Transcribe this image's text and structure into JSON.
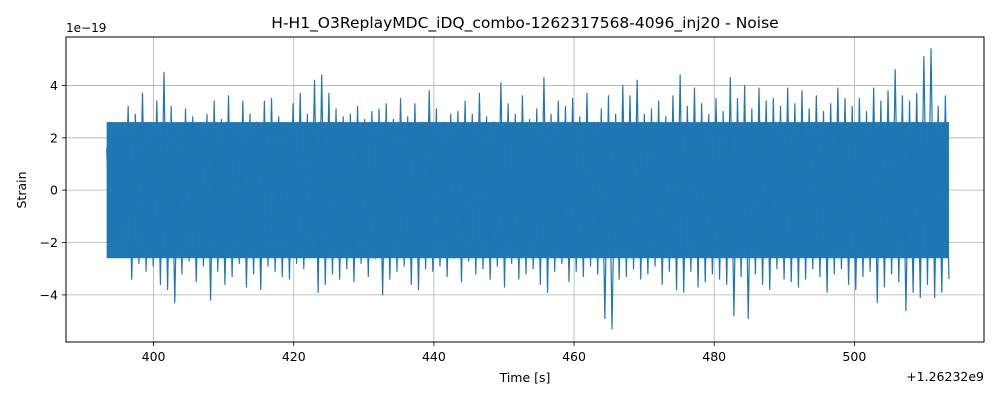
{
  "chart_data": {
    "type": "line",
    "title": "H-H1_O3ReplayMDC_iDQ_combo-1262317568-4096_inj20 - Noise",
    "xlabel": "Time [s]",
    "ylabel": "Strain",
    "x_offset_label": "+1.26232e9",
    "y_scale_label": "1e−19",
    "xlim": [
      387.5,
      518.5
    ],
    "ylim": [
      -5.8,
      5.85
    ],
    "x_ticks": [
      400,
      420,
      440,
      460,
      480,
      500
    ],
    "x_tick_labels": [
      "400",
      "420",
      "440",
      "460",
      "480",
      "500"
    ],
    "y_ticks": [
      -4,
      -2,
      0,
      2,
      4
    ],
    "y_tick_labels": [
      "−4",
      "−2",
      "0",
      "2",
      "4"
    ],
    "grid": true,
    "series": [
      {
        "color": "#1f77b4",
        "x_range": [
          393.3,
          513.5
        ],
        "sample_interval": 0.1,
        "typical_amplitude": 2.6,
        "y": [
          1.6,
          -1.8,
          2.3,
          -2.4,
          1.9,
          -2.1,
          3.2,
          -3.4,
          2.9,
          -2.8,
          3.7,
          -3.1,
          2.6,
          -2.9,
          3.4,
          -3.6,
          4.5,
          -3.8,
          3.2,
          -4.3,
          2.4,
          -3.2,
          3.1,
          -2.7,
          2.8,
          -3.5,
          2.5,
          -2.9,
          2.9,
          -4.2,
          3.4,
          -3.1,
          2.7,
          -3.6,
          3.6,
          -3.3,
          2.5,
          -2.8,
          3.4,
          -3.7,
          2.9,
          -3.2,
          2.6,
          -3.8,
          3.4,
          -2.9,
          3.5,
          -3.1,
          2.8,
          -3.3,
          2.4,
          -3.4,
          3.3,
          -2.8,
          3.7,
          -3.0,
          2.9,
          -2.5,
          4.2,
          -3.9,
          4.4,
          -3.6,
          3.7,
          -3.2,
          3.1,
          -3.4,
          2.8,
          -3.0,
          2.9,
          -3.5,
          3.2,
          -2.8,
          2.7,
          -3.3,
          3.0,
          -2.6,
          3.1,
          -4.0,
          3.3,
          -3.4,
          2.7,
          -3.1,
          3.5,
          -2.9,
          2.8,
          -3.6,
          3.3,
          -3.8,
          2.6,
          -3.0,
          3.8,
          -3.1,
          3.1,
          -2.9,
          2.6,
          -3.3,
          2.9,
          -2.6,
          3.0,
          -3.5,
          3.4,
          -2.7,
          2.9,
          -3.2,
          3.7,
          -3.0,
          2.8,
          -3.4,
          2.6,
          -2.9,
          4.1,
          -3.7,
          3.3,
          -2.8,
          2.9,
          -3.4,
          3.6,
          -3.2,
          2.7,
          -3.0,
          3.1,
          -3.6,
          4.3,
          -3.9,
          2.9,
          -3.1,
          3.4,
          -2.8,
          3.2,
          -3.5,
          3.5,
          -3.1,
          2.8,
          -3.3,
          3.7,
          -2.9,
          2.6,
          -3.2,
          3.1,
          -4.9,
          3.6,
          -5.3,
          2.9,
          -3.4,
          4.0,
          -3.3,
          3.6,
          -3.0,
          4.2,
          -3.4,
          2.9,
          -3.2,
          3.1,
          -2.9,
          3.4,
          -3.6,
          2.8,
          -3.1,
          3.6,
          -3.8,
          4.4,
          -3.9,
          3.2,
          -3.1,
          3.9,
          -3.7,
          3.3,
          -3.5,
          2.9,
          -3.2,
          3.5,
          -3.4,
          3.0,
          -3.6,
          4.3,
          -4.8,
          3.5,
          -3.3,
          4.0,
          -4.9,
          3.1,
          -3.2,
          3.9,
          -3.6,
          3.4,
          -3.8,
          3.5,
          -3.0,
          3.2,
          -3.4,
          3.9,
          -3.5,
          3.3,
          -3.7,
          3.8,
          -3.4,
          3.1,
          -3.0,
          3.6,
          -3.3,
          3.0,
          -3.9,
          3.3,
          -3.2,
          3.9,
          -3.0,
          3.5,
          -3.6,
          3.2,
          -3.8,
          3.5,
          -3.3,
          3.0,
          -3.1,
          3.9,
          -4.3,
          3.4,
          -3.7,
          3.8,
          -3.2,
          4.6,
          -3.5,
          3.6,
          -4.6,
          3.4,
          -3.9,
          3.7,
          -4.1,
          5.1,
          -3.6,
          5.4,
          -4.1,
          3.2,
          -3.9,
          3.6,
          -3.4
        ]
      }
    ]
  }
}
